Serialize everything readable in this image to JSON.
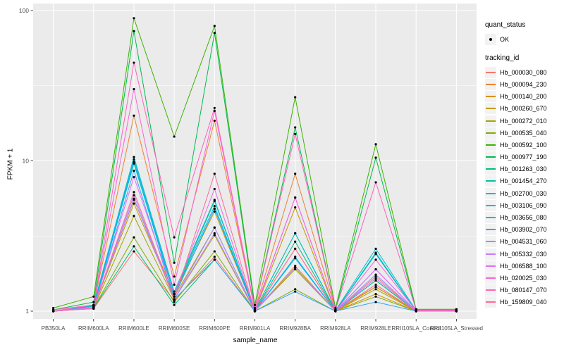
{
  "figure": {
    "panel_bg": "#EBEBEB",
    "grid_color": "#FFFFFF",
    "tick_color": "#333333",
    "tick_label_color": "#4D4D4D",
    "point_color": "#000000",
    "legend_key_bg": "#F2F2F2"
  },
  "legend": {
    "quant_title": "quant_status",
    "quant_ok_label": "OK",
    "tracking_title": "tracking_id"
  },
  "chart_data": {
    "type": "line",
    "title": "",
    "xlabel": "sample_name",
    "ylabel": "FPKM + 1",
    "y_scale": "log10",
    "y_ticks": [
      1,
      10,
      100
    ],
    "ylim": [
      0.89,
      111
    ],
    "grid": true,
    "legend_position": "right",
    "point_marker": "black dot on every value (quant_status = OK)",
    "categories": [
      "PB350LA",
      "RRIM600LA",
      "RRIM600LE",
      "RRIM600SE",
      "RRIM600PE",
      "RRIM901LA",
      "RRIM928BA",
      "RRIM928LA",
      "RRIM928LE",
      "RRII105LA_Control",
      "RRII105LA_Stressed"
    ],
    "series": [
      {
        "name": "Hb_000030_080",
        "color": "#F8766D",
        "values": [
          1.0,
          1.04,
          2.5,
          1.18,
          2.3,
          1.0,
          2.6,
          1.0,
          1.7,
          1.0,
          1.0
        ]
      },
      {
        "name": "Hb_000094_230",
        "color": "#EA8331",
        "values": [
          1.0,
          1.1,
          20.0,
          1.7,
          18.5,
          1.02,
          8.2,
          1.02,
          1.45,
          1.01,
          1.01
        ]
      },
      {
        "name": "Hb_000140_200",
        "color": "#D89000",
        "values": [
          1.0,
          1.08,
          5.5,
          1.3,
          4.6,
          1.0,
          2.0,
          1.0,
          1.3,
          1.0,
          1.0
        ]
      },
      {
        "name": "Hb_000260_670",
        "color": "#C09B00",
        "values": [
          1.0,
          1.06,
          5.2,
          1.25,
          3.6,
          1.0,
          4.9,
          1.0,
          1.45,
          1.0,
          1.0
        ]
      },
      {
        "name": "Hb_000272_010",
        "color": "#A3A500",
        "values": [
          1.0,
          1.05,
          4.3,
          1.2,
          3.2,
          1.0,
          1.9,
          1.0,
          1.4,
          1.0,
          1.0
        ]
      },
      {
        "name": "Hb_000535_040",
        "color": "#7CAE00",
        "values": [
          1.0,
          1.05,
          3.1,
          1.15,
          2.5,
          1.0,
          1.4,
          1.0,
          1.25,
          1.0,
          1.0
        ]
      },
      {
        "name": "Hb_000592_100",
        "color": "#39B600",
        "values": [
          1.05,
          1.25,
          89.0,
          14.5,
          79.0,
          1.1,
          26.5,
          1.05,
          12.9,
          1.03,
          1.03
        ]
      },
      {
        "name": "Hb_000977_190",
        "color": "#00BB4E",
        "values": [
          1.02,
          1.15,
          73.0,
          2.1,
          71.0,
          1.05,
          16.7,
          1.02,
          10.5,
          1.02,
          1.02
        ]
      },
      {
        "name": "Hb_001263_030",
        "color": "#00BF7D",
        "values": [
          1.0,
          1.05,
          2.7,
          1.1,
          2.2,
          1.0,
          2.9,
          1.0,
          1.6,
          1.0,
          1.0
        ]
      },
      {
        "name": "Hb_001454_270",
        "color": "#00C1A3",
        "values": [
          1.0,
          1.09,
          9.6,
          1.3,
          5.4,
          1.01,
          3.3,
          1.0,
          2.4,
          1.0,
          1.0
        ]
      },
      {
        "name": "Hb_002700_030",
        "color": "#00BFC4",
        "values": [
          1.0,
          1.1,
          10.6,
          1.35,
          5.5,
          1.01,
          3.3,
          1.01,
          2.6,
          1.01,
          1.01
        ]
      },
      {
        "name": "Hb_003106_090",
        "color": "#00BAE0",
        "values": [
          1.0,
          1.08,
          10.2,
          1.3,
          5.0,
          1.0,
          2.3,
          1.0,
          2.45,
          1.0,
          1.0
        ]
      },
      {
        "name": "Hb_003656_080",
        "color": "#00B0F6",
        "values": [
          1.0,
          1.05,
          9.8,
          1.25,
          4.8,
          1.0,
          2.25,
          1.0,
          1.9,
          1.0,
          1.0
        ]
      },
      {
        "name": "Hb_003902_070",
        "color": "#35A2FF",
        "values": [
          1.0,
          1.04,
          8.6,
          1.2,
          2.2,
          1.0,
          1.35,
          1.0,
          1.15,
          1.0,
          1.0
        ]
      },
      {
        "name": "Hb_004531_060",
        "color": "#9590FF",
        "values": [
          1.0,
          1.05,
          5.6,
          1.2,
          3.6,
          1.0,
          1.95,
          1.0,
          1.75,
          1.0,
          1.0
        ]
      },
      {
        "name": "Hb_005332_030",
        "color": "#C77CFF",
        "values": [
          1.0,
          1.05,
          5.9,
          1.2,
          3.3,
          1.0,
          1.95,
          1.0,
          1.65,
          1.0,
          1.0
        ]
      },
      {
        "name": "Hb_006588_100",
        "color": "#E76BF3",
        "values": [
          1.0,
          1.06,
          7.8,
          1.3,
          6.5,
          1.0,
          5.7,
          1.0,
          1.9,
          1.0,
          1.0
        ]
      },
      {
        "name": "Hb_020025_030",
        "color": "#FA62DB",
        "values": [
          1.0,
          1.1,
          30.0,
          1.5,
          21.5,
          1.02,
          5.7,
          1.0,
          2.2,
          1.01,
          1.01
        ]
      },
      {
        "name": "Hb_080147_070",
        "color": "#FF62BC",
        "values": [
          1.02,
          1.1,
          45.0,
          3.1,
          22.5,
          1.05,
          15.1,
          1.02,
          7.2,
          1.02,
          1.02
        ]
      },
      {
        "name": "Hb_159809_040",
        "color": "#FF6A98",
        "values": [
          1.0,
          1.04,
          6.2,
          1.2,
          8.2,
          1.0,
          2.6,
          1.0,
          1.5,
          1.0,
          1.0
        ]
      }
    ]
  }
}
